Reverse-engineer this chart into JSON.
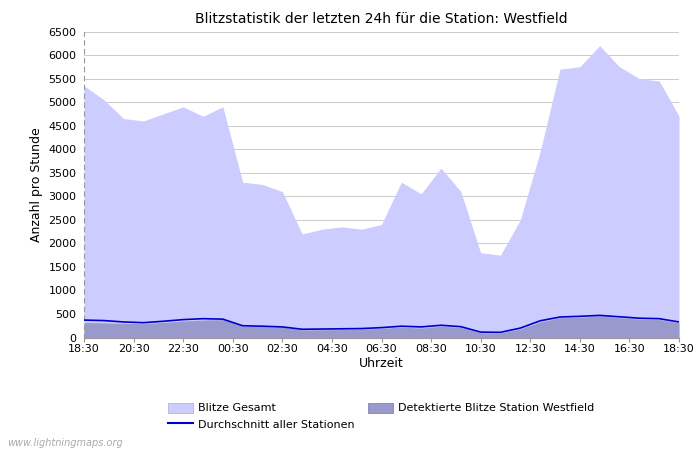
{
  "title": "Blitzstatistik der letzten 24h für die Station: Westfield",
  "xlabel": "Uhrzeit",
  "ylabel": "Anzahl pro Stunde",
  "ylim": [
    0,
    6500
  ],
  "yticks": [
    0,
    500,
    1000,
    1500,
    2000,
    2500,
    3000,
    3500,
    4000,
    4500,
    5000,
    5500,
    6000,
    6500
  ],
  "xtick_labels": [
    "18:30",
    "20:30",
    "22:30",
    "00:30",
    "02:30",
    "04:30",
    "06:30",
    "08:30",
    "10:30",
    "12:30",
    "14:30",
    "16:30",
    "18:30"
  ],
  "background_color": "#ffffff",
  "plot_background": "#ffffff",
  "grid_color": "#cccccc",
  "color_gesamt": "#ccccff",
  "color_westfield": "#9999cc",
  "color_line": "#0000cc",
  "watermark": "www.lightningmaps.org",
  "legend_entries": [
    "Blitze Gesamt",
    "Detektierte Blitze Station Westfield",
    "Durchschnitt aller Stationen"
  ],
  "gesamt_values": [
    5350,
    5050,
    4650,
    4600,
    4750,
    4900,
    4700,
    4900,
    3300,
    3250,
    3100,
    2200,
    2300,
    2350,
    2300,
    2400,
    3300,
    3050,
    3600,
    3100,
    1800,
    1750,
    2500,
    3950,
    5700,
    5750,
    6200,
    5750,
    5500,
    5450,
    4700
  ],
  "westfield_values": [
    320,
    310,
    300,
    295,
    320,
    350,
    370,
    380,
    240,
    230,
    220,
    160,
    165,
    170,
    175,
    195,
    220,
    200,
    240,
    210,
    100,
    95,
    180,
    330,
    420,
    430,
    460,
    420,
    390,
    380,
    310
  ],
  "avg_values": [
    370,
    360,
    330,
    315,
    345,
    380,
    400,
    390,
    250,
    240,
    225,
    175,
    180,
    185,
    190,
    210,
    240,
    225,
    260,
    230,
    115,
    110,
    200,
    355,
    435,
    450,
    470,
    440,
    410,
    400,
    330
  ]
}
